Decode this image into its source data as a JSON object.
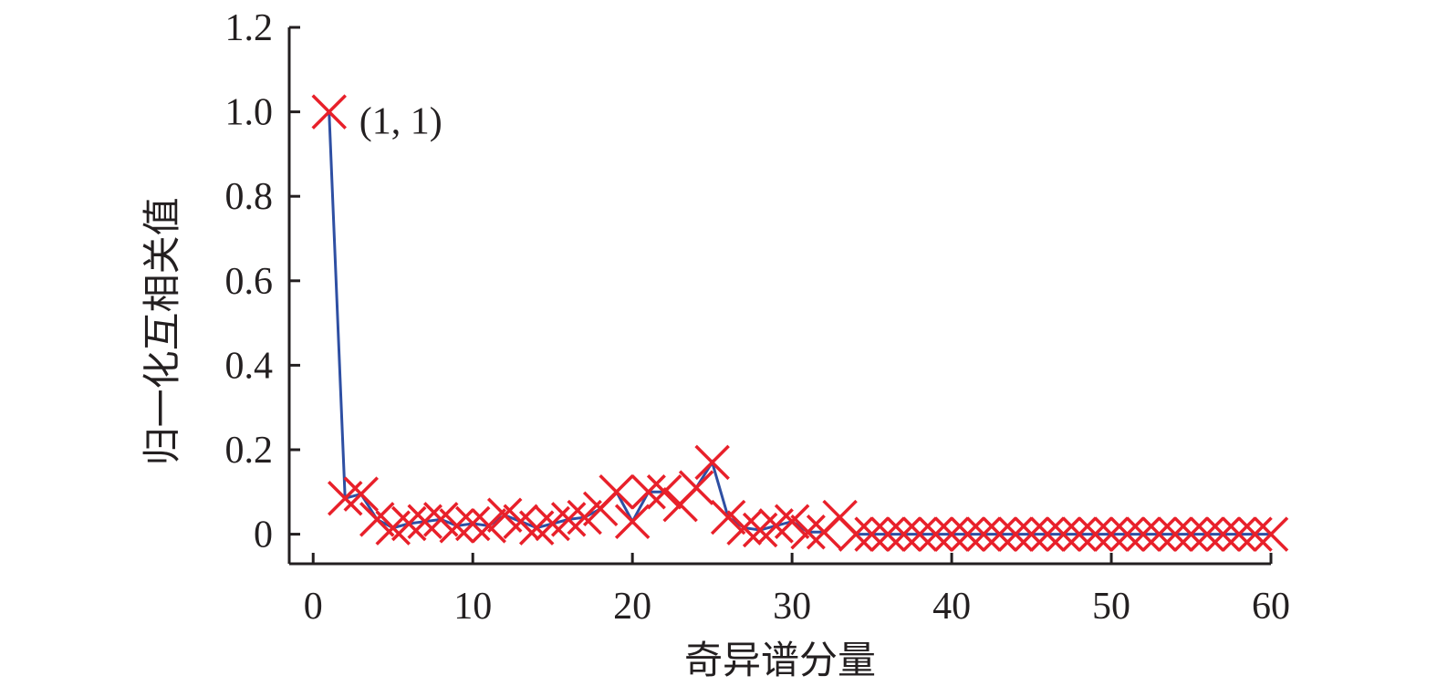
{
  "chart_data": {
    "type": "line",
    "title": "",
    "xlabel": "奇异谱分量",
    "ylabel": "归一化互相关值",
    "xlim": [
      -1.5,
      60
    ],
    "ylim": [
      -0.07,
      1.2
    ],
    "xticks": [
      0,
      10,
      20,
      30,
      40,
      50,
      60
    ],
    "xtick_labels": [
      "0",
      "10",
      "20",
      "30",
      "40",
      "50",
      "60"
    ],
    "yticks": [
      0,
      0.2,
      0.4,
      0.6,
      0.8,
      1.0,
      1.2
    ],
    "ytick_labels": [
      "0",
      "0.2",
      "0.4",
      "0.6",
      "0.8",
      "1.0",
      "1.2"
    ],
    "grid": false,
    "legend": "none",
    "line_color": "#2e4fa3",
    "marker_color": "#e8202a",
    "marker": "x",
    "annotation": {
      "text": "(1, 1)",
      "x": 1,
      "y": 1.0
    },
    "x": [
      1,
      2,
      3,
      4,
      5,
      6,
      7,
      8,
      9,
      10,
      11,
      12,
      13,
      14,
      15,
      16,
      17,
      18,
      19,
      20,
      21,
      22,
      23,
      24,
      25,
      26,
      27,
      28,
      29,
      30,
      31,
      32,
      33,
      34,
      35,
      36,
      37,
      38,
      39,
      40,
      41,
      42,
      43,
      44,
      45,
      46,
      47,
      48,
      49,
      50,
      51,
      52,
      53,
      54,
      55,
      56,
      57,
      58,
      59,
      60
    ],
    "y": [
      1.0,
      0.085,
      0.095,
      0.035,
      0.015,
      0.025,
      0.03,
      0.035,
      0.02,
      0.025,
      0.02,
      0.045,
      0.03,
      0.015,
      0.025,
      0.035,
      0.04,
      0.06,
      0.1,
      0.03,
      0.1,
      0.1,
      0.07,
      0.11,
      0.17,
      0.04,
      0.015,
      0.01,
      0.02,
      0.03,
      0.005,
      0.005,
      0.04,
      0.0,
      0.0,
      0.0,
      0.0,
      0.0,
      0.0,
      0.0,
      0.0,
      0.0,
      0.0,
      0.0,
      0.0,
      0.0,
      0.0,
      0.0,
      0.0,
      0.0,
      0.0,
      0.0,
      0.0,
      0.0,
      0.0,
      0.0,
      0.0,
      0.0,
      0.0,
      0.0
    ]
  }
}
